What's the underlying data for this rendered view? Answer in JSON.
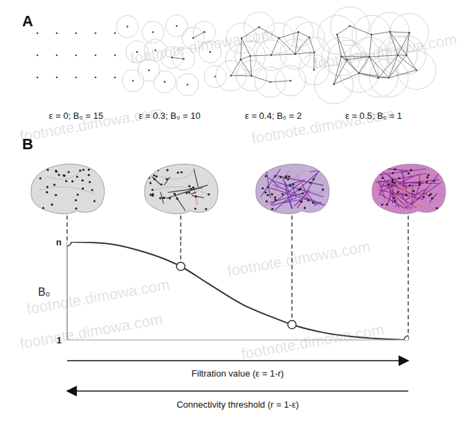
{
  "panel_a": {
    "label": "A",
    "captions": [
      "ε = 0; B₀ = 15",
      "ε = 0.3; B₀ = 10",
      "ε = 0.4; B₀ = 2",
      "ε = 0.5; B₀ = 1"
    ]
  },
  "panel_b_label": "B",
  "watermark": "footnote.dimowa.com",
  "chart_data": {
    "type": "line",
    "xlabel": "Filtration value (ε = 1-r)",
    "ylabel": "B₀",
    "annotations": [
      "Connectivity threshold (r = 1-ε)"
    ],
    "xlim": [
      0,
      1
    ],
    "ylim": [
      1,
      15
    ],
    "yticks": [
      {
        "value": 15,
        "label": "n"
      },
      1
    ],
    "tick_labels": "y",
    "series": [
      {
        "type": "line",
        "color": "#333333",
        "x": [
          0,
          0.107,
          0.209,
          0.333,
          0.412,
          0.513,
          0.615,
          0.659,
          0.757,
          0.878,
          1
        ],
        "values": [
          15,
          14.8,
          13.8,
          11.5,
          9.1,
          6.1,
          4.0,
          3.2,
          2.0,
          1.3,
          1
        ]
      },
      {
        "type": "scatter",
        "color": "#333333",
        "marker": "circle",
        "x": [
          0,
          0.333,
          0.659,
          1
        ],
        "values": [
          15,
          11.5,
          3.2,
          1
        ]
      }
    ]
  }
}
